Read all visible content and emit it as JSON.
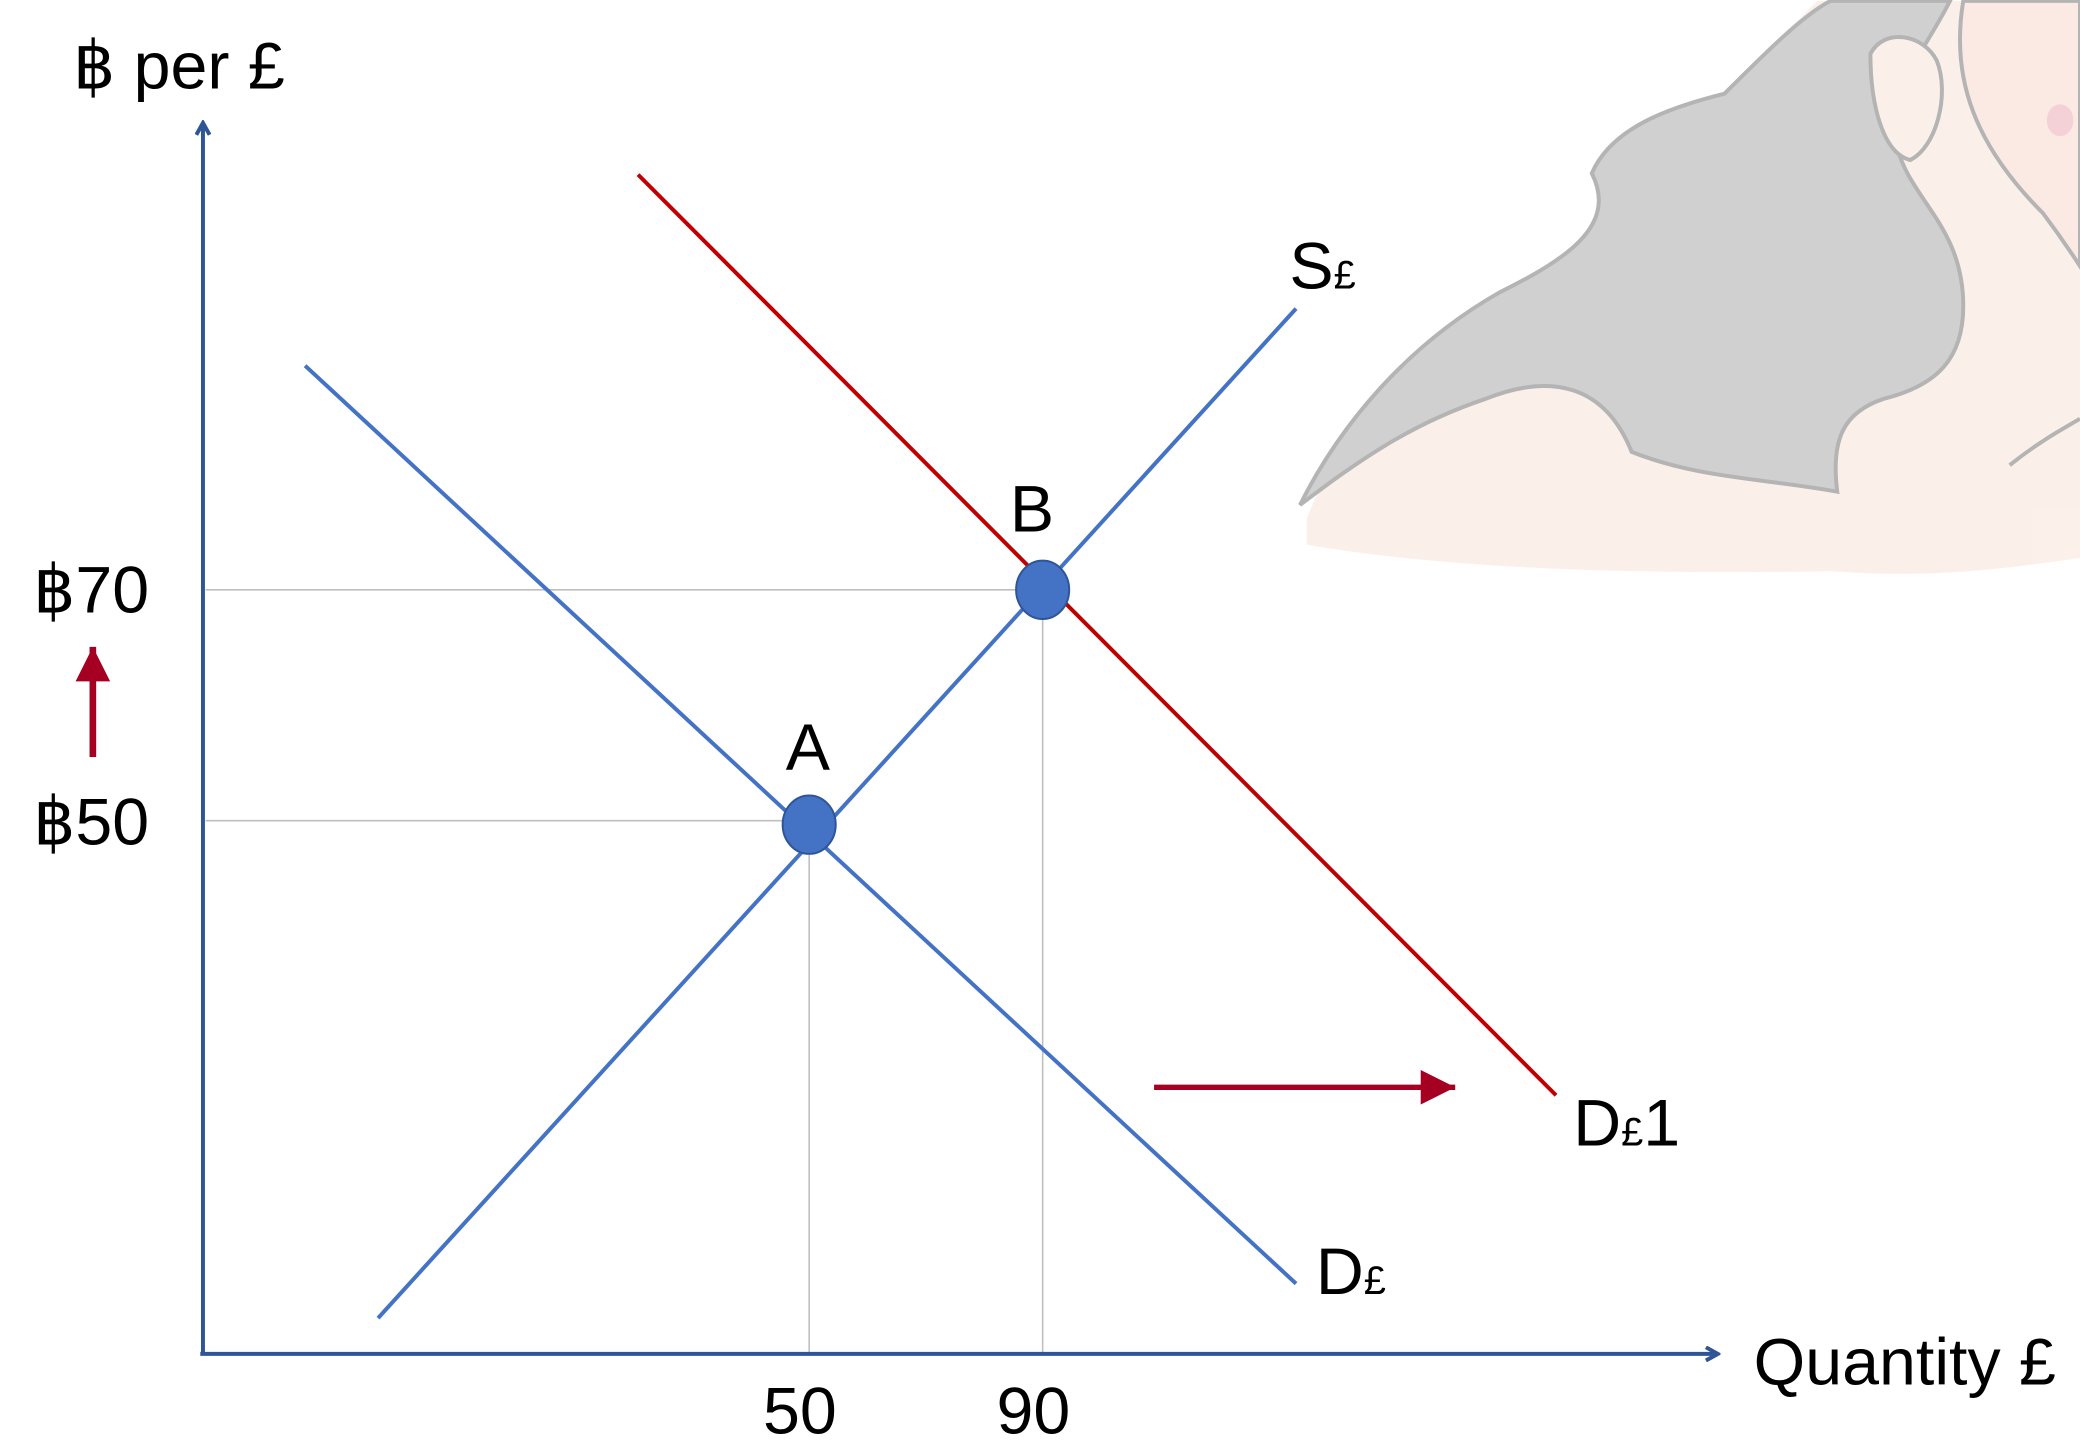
{
  "axes": {
    "y_label": "฿ per £",
    "x_label": "Quantity £"
  },
  "price_ticks": [
    "฿70",
    "฿50"
  ],
  "quantity_ticks": [
    "50",
    "90"
  ],
  "curves": {
    "supply": {
      "main": "S",
      "sub": "£"
    },
    "demand": {
      "main": "D",
      "sub": "£"
    },
    "demand_new": {
      "main": "D",
      "sub": "£",
      "suffix": "1"
    }
  },
  "points": [
    "A",
    "B"
  ]
}
